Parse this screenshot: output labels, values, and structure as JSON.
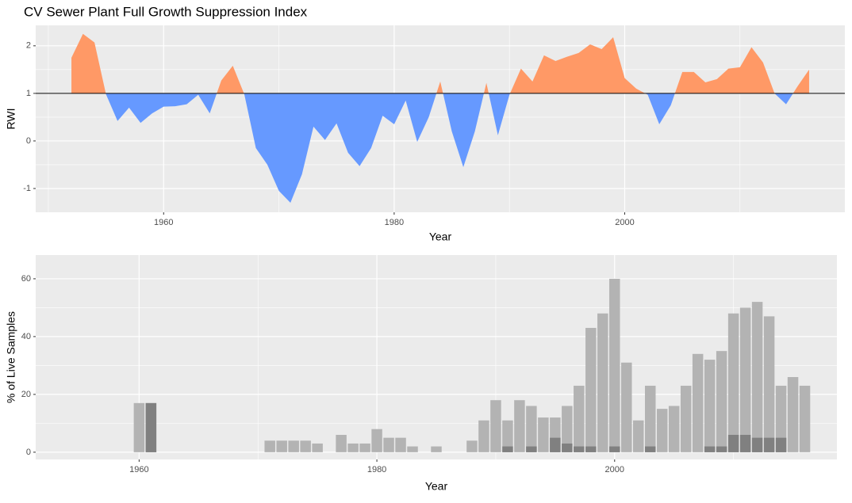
{
  "chart_data": [
    {
      "type": "area",
      "title": "CV Sewer Plant Full Growth Suppression Index",
      "xlabel": "Year",
      "ylabel": "RWI",
      "x": [
        1952,
        1953,
        1954,
        1955,
        1956,
        1957,
        1958,
        1959,
        1960,
        1961,
        1962,
        1963,
        1964,
        1965,
        1966,
        1967,
        1968,
        1969,
        1970,
        1971,
        1972,
        1973,
        1974,
        1975,
        1976,
        1977,
        1978,
        1979,
        1980,
        1981,
        1982,
        1983,
        1984,
        1985,
        1986,
        1987,
        1988,
        1989,
        1990,
        1991,
        1992,
        1993,
        1994,
        1995,
        1996,
        1997,
        1998,
        1999,
        2000,
        2001,
        2002,
        2003,
        2004,
        2005,
        2006,
        2007,
        2008,
        2009,
        2010,
        2011,
        2012,
        2013,
        2014,
        2015,
        2016
      ],
      "values": [
        1.75,
        2.25,
        2.07,
        0.98,
        0.42,
        0.7,
        0.38,
        0.58,
        0.72,
        0.73,
        0.77,
        0.97,
        0.58,
        1.27,
        1.58,
        0.98,
        -0.15,
        -0.5,
        -1.05,
        -1.3,
        -0.7,
        0.3,
        0.02,
        0.37,
        -0.25,
        -0.53,
        -0.15,
        0.53,
        0.35,
        0.85,
        -0.02,
        0.5,
        1.25,
        0.2,
        -0.55,
        0.2,
        1.22,
        0.12,
        0.97,
        1.52,
        1.25,
        1.8,
        1.68,
        1.77,
        1.85,
        2.03,
        1.93,
        2.18,
        1.32,
        1.1,
        0.97,
        0.35,
        0.75,
        1.45,
        1.45,
        1.23,
        1.3,
        1.52,
        1.55,
        1.97,
        1.65,
        1.0,
        0.77,
        1.15,
        1.5
      ],
      "baseline": 1,
      "color_above": "#ff9966",
      "color_below": "#6699ff",
      "xlim": [
        1948.9,
        2019.1
      ],
      "xticks": [
        1960,
        1980,
        2000
      ],
      "ylim": [
        -1.5,
        2.43
      ],
      "yticks": [
        -1,
        0,
        1,
        2
      ],
      "grid": true
    },
    {
      "type": "bar",
      "xlabel": "Year",
      "ylabel": "% of Live Samples",
      "x": [
        1960,
        1961,
        1962,
        1963,
        1964,
        1965,
        1966,
        1967,
        1968,
        1969,
        1970,
        1971,
        1972,
        1973,
        1974,
        1975,
        1976,
        1977,
        1978,
        1979,
        1980,
        1981,
        1982,
        1983,
        1984,
        1985,
        1986,
        1987,
        1988,
        1989,
        1990,
        1991,
        1992,
        1993,
        1994,
        1995,
        1996,
        1997,
        1998,
        1999,
        2000,
        2001,
        2002,
        2003,
        2004,
        2005,
        2006,
        2007,
        2008,
        2009,
        2010,
        2011,
        2012,
        2013,
        2014,
        2015,
        2016
      ],
      "series": [
        {
          "color": "#b3b3b3",
          "values": [
            17,
            17,
            0,
            0,
            0,
            0,
            0,
            0,
            0,
            0,
            0,
            4,
            4,
            4,
            4,
            3,
            0,
            6,
            3,
            3,
            8,
            5,
            5,
            2,
            0,
            2,
            0,
            0,
            4,
            11,
            18,
            11,
            18,
            16,
            12,
            12,
            16,
            23,
            43,
            48,
            60,
            31,
            11,
            23,
            15,
            16,
            23,
            34,
            32,
            35,
            48,
            50,
            52,
            47,
            23,
            26,
            23
          ]
        },
        {
          "color": "#808080",
          "values": [
            0,
            17,
            0,
            0,
            0,
            0,
            0,
            0,
            0,
            0,
            0,
            0,
            0,
            0,
            0,
            0,
            0,
            0,
            0,
            0,
            0,
            0,
            0,
            0,
            0,
            0,
            0,
            0,
            0,
            0,
            0,
            2,
            0,
            2,
            0,
            5,
            3,
            2,
            2,
            0,
            2,
            0,
            0,
            2,
            0,
            0,
            0,
            0,
            2,
            2,
            6,
            6,
            5,
            5,
            5,
            0,
            0
          ]
        }
      ],
      "xlim": [
        1951.3,
        2018.7
      ],
      "xticks": [
        1960,
        1980,
        2000
      ],
      "ylim": [
        -2.5,
        68.2
      ],
      "yticks": [
        0,
        20,
        40,
        60
      ],
      "grid": true
    }
  ]
}
